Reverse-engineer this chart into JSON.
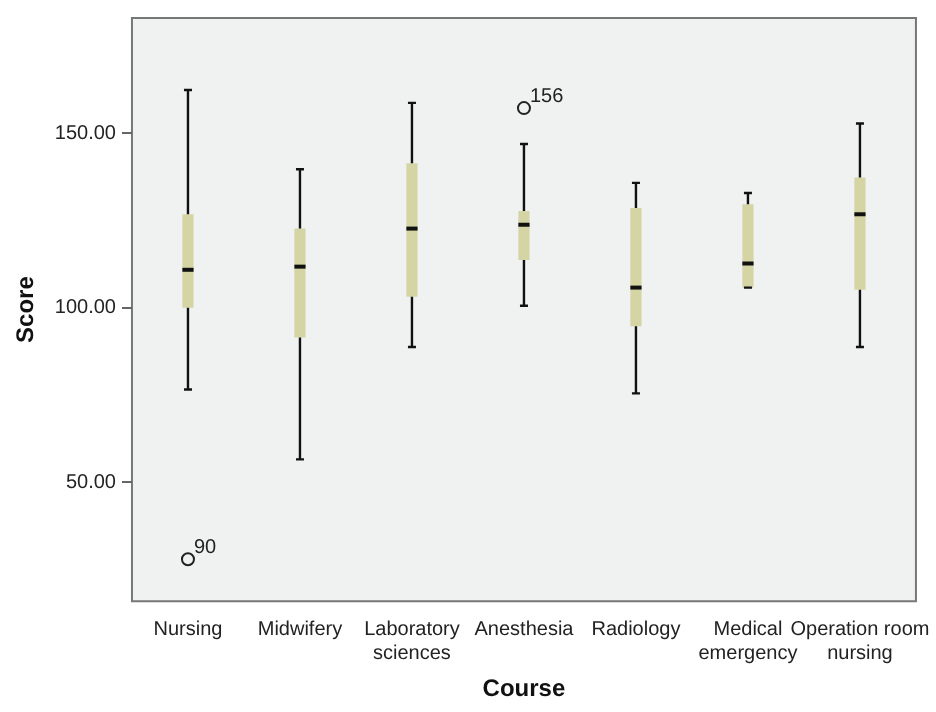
{
  "chart_data": {
    "type": "box",
    "xlabel": "Course",
    "ylabel": "Score",
    "categories": [
      "Nursing",
      "Midwifery",
      "Laboratory sciences",
      "Anesthesia",
      "Radiology",
      "Medical emergency",
      "Operation room nursing"
    ],
    "boxes": [
      {
        "low": 76.6,
        "q1": 100,
        "median": 110.9,
        "q3": 126.8,
        "high": 162.4,
        "outliers": [
          28
        ]
      },
      {
        "low": 56.6,
        "q1": 91.5,
        "median": 111.8,
        "q3": 122.7,
        "high": 139.7
      },
      {
        "low": 88.8,
        "q1": 103.2,
        "median": 122.7,
        "q3": 141.4,
        "high": 158.7
      },
      {
        "low": 100.6,
        "q1": 113.7,
        "median": 123.8,
        "q3": 127.7,
        "high": 146.9,
        "outliers": [
          157.2
        ]
      },
      {
        "low": 75.5,
        "q1": 94.7,
        "median": 105.8,
        "q3": 128.6,
        "high": 135.8
      },
      {
        "low": 105.8,
        "q1": 105.8,
        "median": 112.7,
        "q3": 129.7,
        "high": 132.9
      },
      {
        "low": 88.8,
        "q1": 105.2,
        "median": 126.8,
        "q3": 137.3,
        "high": 152.8
      }
    ],
    "color": "#d4d4a4",
    "annotations": [
      "90",
      "156"
    ],
    "ylim": [
      16,
      183
    ],
    "yticks": [
      {
        "value": 50,
        "label": "50.00"
      },
      {
        "value": 100,
        "label": "100.00"
      },
      {
        "value": 150,
        "label": "150.00"
      }
    ],
    "grid": false,
    "legend": false
  }
}
